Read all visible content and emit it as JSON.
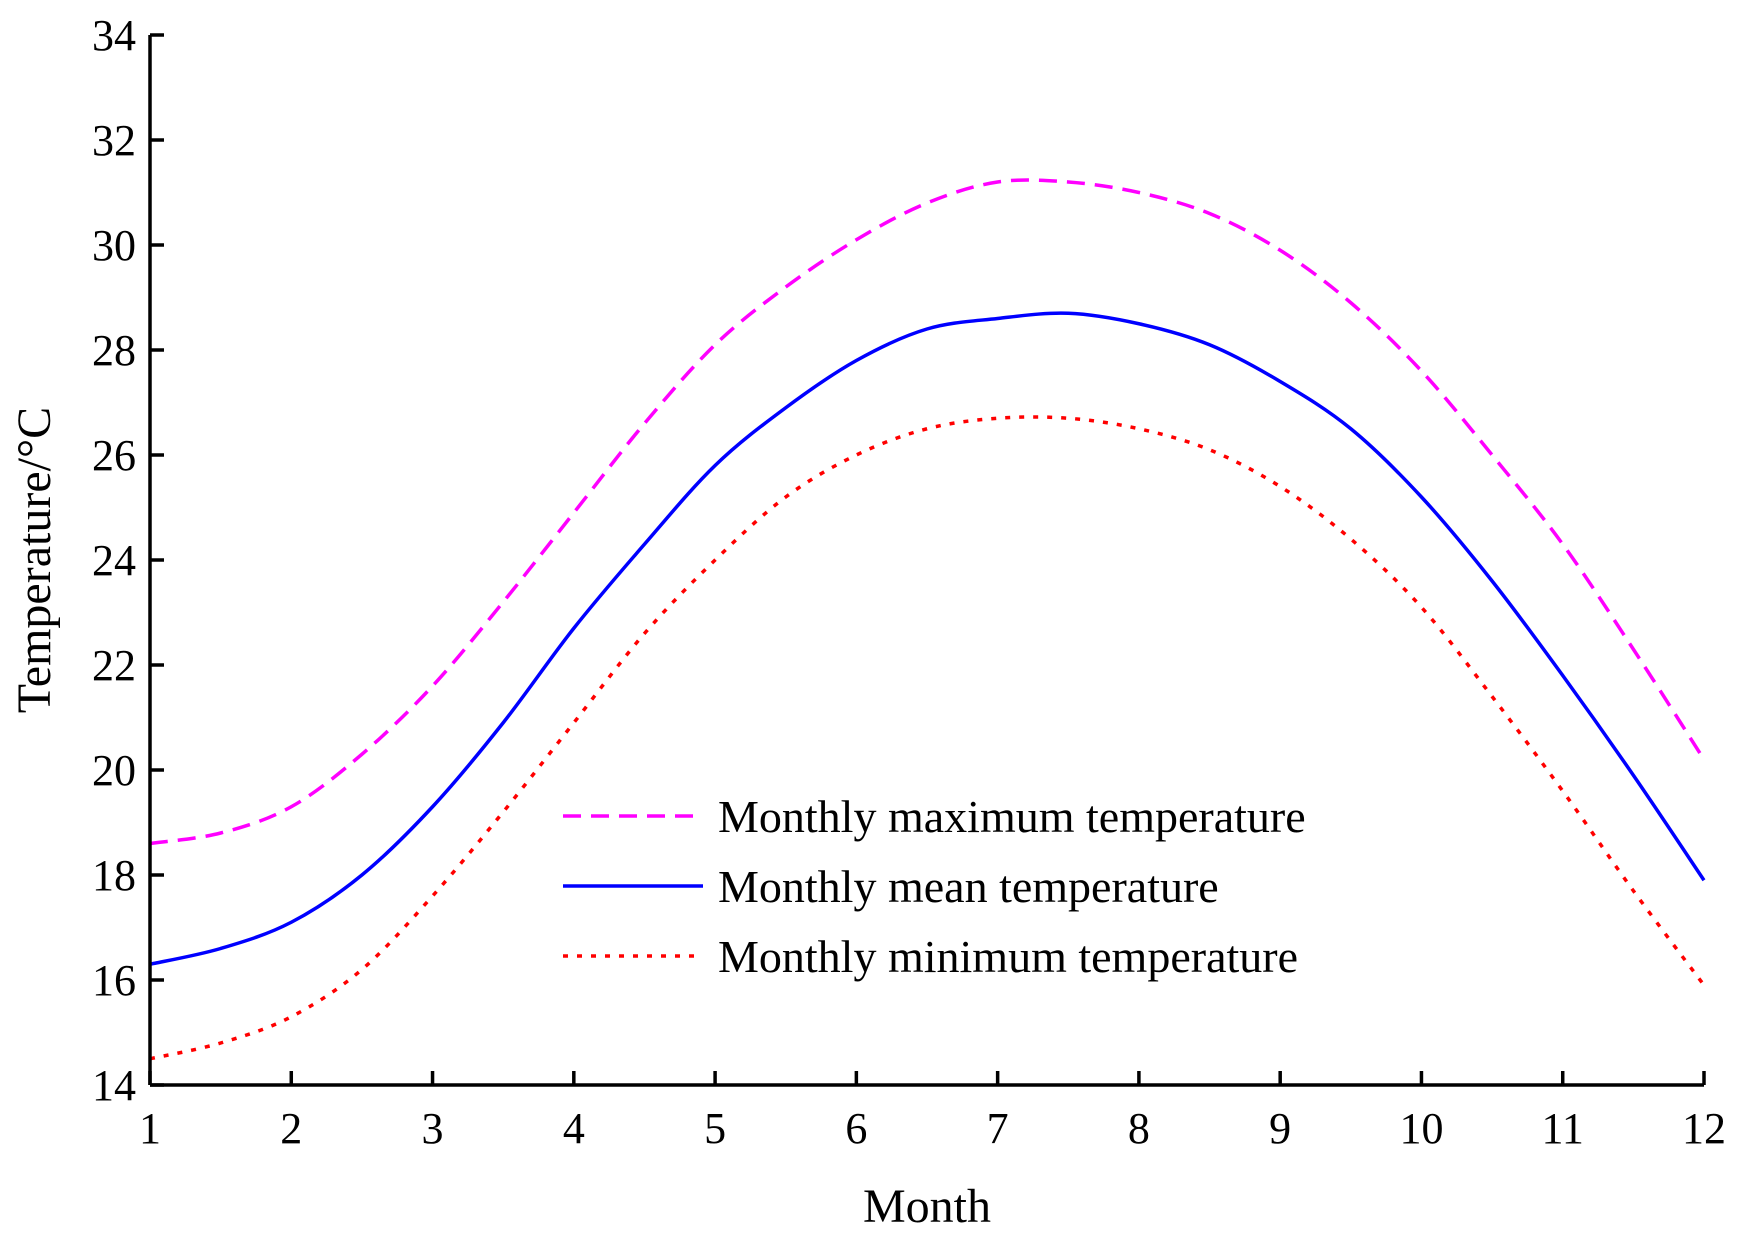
{
  "chart_data": {
    "type": "line",
    "title": "",
    "xlabel": "Month",
    "ylabel": "Temperature/°C",
    "xlim": [
      1,
      12
    ],
    "ylim": [
      14,
      34
    ],
    "xticks": [
      1,
      2,
      3,
      4,
      5,
      6,
      7,
      8,
      9,
      10,
      11,
      12
    ],
    "yticks": [
      14,
      16,
      18,
      20,
      22,
      24,
      26,
      28,
      30,
      32,
      34
    ],
    "grid": false,
    "legend_position": "lower-center",
    "x": [
      1,
      1.5,
      2,
      2.5,
      3,
      3.5,
      4,
      4.5,
      5,
      5.5,
      6,
      6.5,
      7,
      7.5,
      8,
      8.5,
      9,
      9.5,
      10,
      10.5,
      11,
      11.5,
      12
    ],
    "series": [
      {
        "name": "Monthly maximum temperature",
        "color": "#ff00ff",
        "style": "dashed",
        "values": [
          18.6,
          18.8,
          19.3,
          20.3,
          21.6,
          23.2,
          24.9,
          26.6,
          28.1,
          29.2,
          30.1,
          30.8,
          31.2,
          31.2,
          31.0,
          30.6,
          29.9,
          28.9,
          27.6,
          26.0,
          24.3,
          22.3,
          20.2
        ]
      },
      {
        "name": "Monthly mean temperature",
        "color": "#0000ff",
        "style": "solid",
        "values": [
          16.3,
          16.6,
          17.1,
          18.0,
          19.3,
          20.9,
          22.7,
          24.3,
          25.8,
          26.9,
          27.8,
          28.4,
          28.6,
          28.7,
          28.5,
          28.1,
          27.4,
          26.5,
          25.2,
          23.6,
          21.8,
          19.9,
          17.9
        ]
      },
      {
        "name": "Monthly minimum temperature",
        "color": "#ff0000",
        "style": "dotted",
        "values": [
          14.5,
          14.8,
          15.3,
          16.2,
          17.6,
          19.2,
          20.9,
          22.6,
          24.0,
          25.2,
          26.0,
          26.5,
          26.7,
          26.7,
          26.5,
          26.1,
          25.4,
          24.4,
          23.1,
          21.4,
          19.6,
          17.7,
          15.9
        ]
      }
    ]
  }
}
